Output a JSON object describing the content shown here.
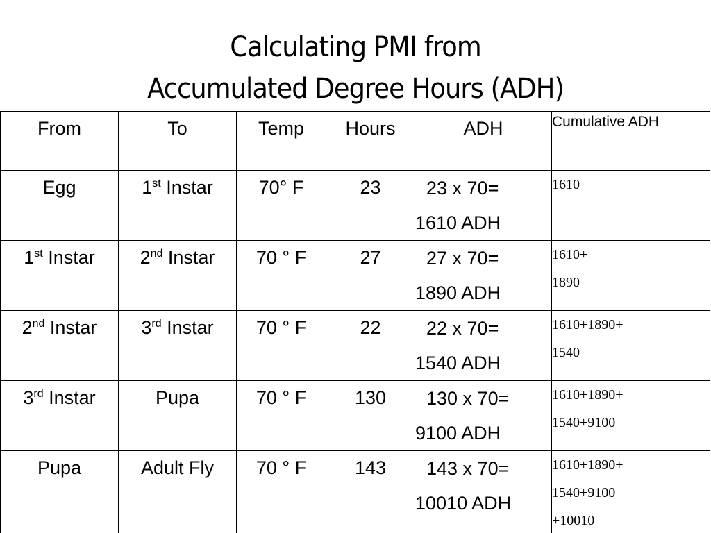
{
  "title": {
    "line1": "Calculating PMI from",
    "line2": "Accumulated Degree Hours (ADH)"
  },
  "table": {
    "headers": {
      "from": "From",
      "to": "To",
      "temp": "Temp",
      "hours": "Hours",
      "adh": "ADH",
      "cumulative": "Cumulative ADH"
    },
    "rows": [
      {
        "from": {
          "num": "",
          "sup": "",
          "text": "Egg"
        },
        "to": {
          "num": "1",
          "sup": "st",
          "text": " Instar"
        },
        "temp": "70° F",
        "hours": "23",
        "adh_line1": "23 x 70=",
        "adh_line2": "1610 ADH",
        "cum_lines": [
          "1610"
        ]
      },
      {
        "from": {
          "num": "1",
          "sup": "st",
          "text": " Instar"
        },
        "to": {
          "num": "2",
          "sup": "nd",
          "text": " Instar"
        },
        "temp": "70 ° F",
        "hours": "27",
        "adh_line1": "27 x 70=",
        "adh_line2": "1890 ADH",
        "cum_lines": [
          "1610+",
          "1890"
        ]
      },
      {
        "from": {
          "num": "2",
          "sup": "nd",
          "text": " Instar"
        },
        "to": {
          "num": "3",
          "sup": "rd",
          "text": " Instar"
        },
        "temp": "70 ° F",
        "hours": "22",
        "adh_line1": "22 x 70=",
        "adh_line2": "1540 ADH",
        "cum_lines": [
          "1610+1890+",
          "1540"
        ]
      },
      {
        "from": {
          "num": "3",
          "sup": "rd",
          "text": " Instar"
        },
        "to": {
          "num": "",
          "sup": "",
          "text": "Pupa"
        },
        "temp": "70 ° F",
        "hours": "130",
        "adh_line1": "130 x 70=",
        "adh_line2": "9100 ADH",
        "cum_lines": [
          "1610+1890+",
          "1540+9100"
        ]
      },
      {
        "from": {
          "num": "",
          "sup": "",
          "text": "Pupa"
        },
        "to": {
          "num": "",
          "sup": "",
          "text": "Adult Fly"
        },
        "temp": "70 ° F",
        "hours": "143",
        "adh_line1": "143 x 70=",
        "adh_line2": "10010 ADH",
        "cum_lines": [
          "1610+1890+",
          "1540+9100",
          "+10010"
        ]
      }
    ]
  }
}
